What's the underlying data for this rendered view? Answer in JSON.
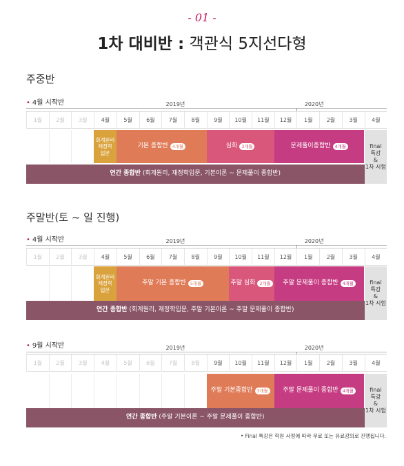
{
  "header": {
    "number": "- 01 -",
    "title_bold": "1차 대비반 :",
    "title_rest": " 객관식 5지선다형"
  },
  "months": [
    "1월",
    "2월",
    "3월",
    "4월",
    "5월",
    "6월",
    "7월",
    "8월",
    "9월",
    "10월",
    "11월",
    "12월",
    "1월",
    "2월",
    "3월",
    "4월"
  ],
  "years": [
    "2019년",
    "2020년"
  ],
  "sections": [
    {
      "heading": "주중반",
      "start": "4월 시작반",
      "bars": [
        {
          "label": "회계원리\n재정학\n입문",
          "badge": ""
        },
        {
          "label": "기본 종합반",
          "badge": "4개월"
        },
        {
          "label": "심화",
          "badge": "3개월"
        },
        {
          "label": "문제풀이종합반",
          "badge": "4개월"
        },
        {
          "label": "final\n특강\n&\n1차 시험",
          "badge": ""
        }
      ],
      "annual_bold": "연간 종합반",
      "annual_rest": " (회계원리, 재정학입문, 기본이론 ~ 문제풀이 종합반)"
    },
    {
      "heading": "주말반(토 ~ 일 진행)",
      "start": "4월 시작반",
      "bars": [
        {
          "label": "회계원리\n재정학\n입문",
          "badge": ""
        },
        {
          "label": "주말 기본 종합반",
          "badge": "5개월"
        },
        {
          "label": "주말 심화",
          "badge": "2개월"
        },
        {
          "label": "주말 문제풀이 종합반",
          "badge": "4개월"
        },
        {
          "label": "final\n특강\n&\n1차 시험",
          "badge": ""
        }
      ],
      "annual_bold": "연간 종합반",
      "annual_rest": " (회계원리, 재정학입문, 주말 기본이론 ~ 주말 문제풀이 종합반)"
    },
    {
      "heading": "",
      "start": "9월 시작반",
      "bars": [
        {
          "label": "주말 기본종합반",
          "badge": "3개월"
        },
        {
          "label": "주말 문제풀이 종합반",
          "badge": "4개월"
        },
        {
          "label": "final\n특강\n&\n1차 시험",
          "badge": ""
        }
      ],
      "annual_bold": "연간 종합반",
      "annual_rest": " (주말 기본이론 ~ 주말 문제풀이 종합반)"
    }
  ],
  "footnote": "• Final 특강은 학원 사정에 따라 무료 또는 유료강의로 진행됩니다.",
  "colors": {
    "accent": "#c2185b",
    "orange": "#d9a23c",
    "salmon": "#e07b58",
    "pink": "#d9577b",
    "magenta": "#c63c82",
    "grey": "#e2e2e2",
    "annual": "#8a5567"
  }
}
